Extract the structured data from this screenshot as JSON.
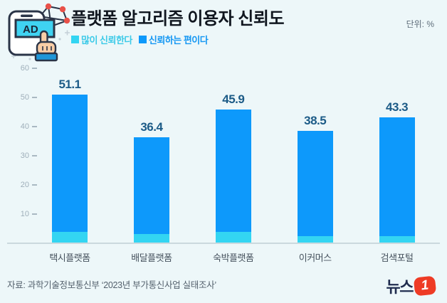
{
  "header": {
    "title": "플랫폼 알고리즘 이용자 신뢰도",
    "unit_label": "단위: %",
    "icon": "ad-phone-hand-network-icon"
  },
  "legend": [
    {
      "label": "많이 신뢰한다",
      "color": "#33D5F2",
      "text_color": "#3BCAE8"
    },
    {
      "label": "신뢰하는 편이다",
      "color": "#0D99FB",
      "text_color": "#1497F3"
    }
  ],
  "chart_data": {
    "type": "bar",
    "stacked": true,
    "title": "플랫폼 알고리즘 이용자 신뢰도",
    "unit": "%",
    "categories": [
      "택시플랫폼",
      "배달플랫폼",
      "숙박플랫폼",
      "이커머스",
      "검색포털"
    ],
    "totals": [
      51.1,
      36.4,
      45.9,
      38.5,
      43.3
    ],
    "series": [
      {
        "name": "많이 신뢰한다",
        "color": "#33D5F2",
        "values": [
          4.0,
          3.1,
          4.0,
          2.5,
          2.5
        ]
      },
      {
        "name": "신뢰하는 편이다",
        "color": "#0D99FB",
        "values": [
          47.1,
          33.3,
          41.9,
          36.0,
          40.8
        ]
      }
    ],
    "yticks": [
      10,
      20,
      30,
      40,
      50,
      60
    ],
    "ylim": [
      0,
      62.5
    ],
    "grid": false,
    "legend_position": "top-left under title",
    "value_labels": "totals above bars",
    "xlabel": "",
    "ylabel": ""
  },
  "footer": {
    "source": "자료: 과학기술정보통신부 ‘2023년 부가통신사업 실태조사’",
    "logo_text": "뉴스",
    "logo_badge": "1"
  },
  "colors": {
    "background": "#EDF7F9",
    "bar_main": "#0D99FB",
    "bar_bottom": "#33D5F2",
    "value_label": "#1C5B87",
    "axis_line": "#CBD9DE",
    "ytick_text": "#9FAFBA",
    "xlabel_text": "#46525E",
    "title_text": "#10161F",
    "logo_red": "#EE3B25",
    "logo_navy": "#1F2C4E",
    "icon_outline": "#2A3447",
    "icon_node_red": "#E85149"
  }
}
